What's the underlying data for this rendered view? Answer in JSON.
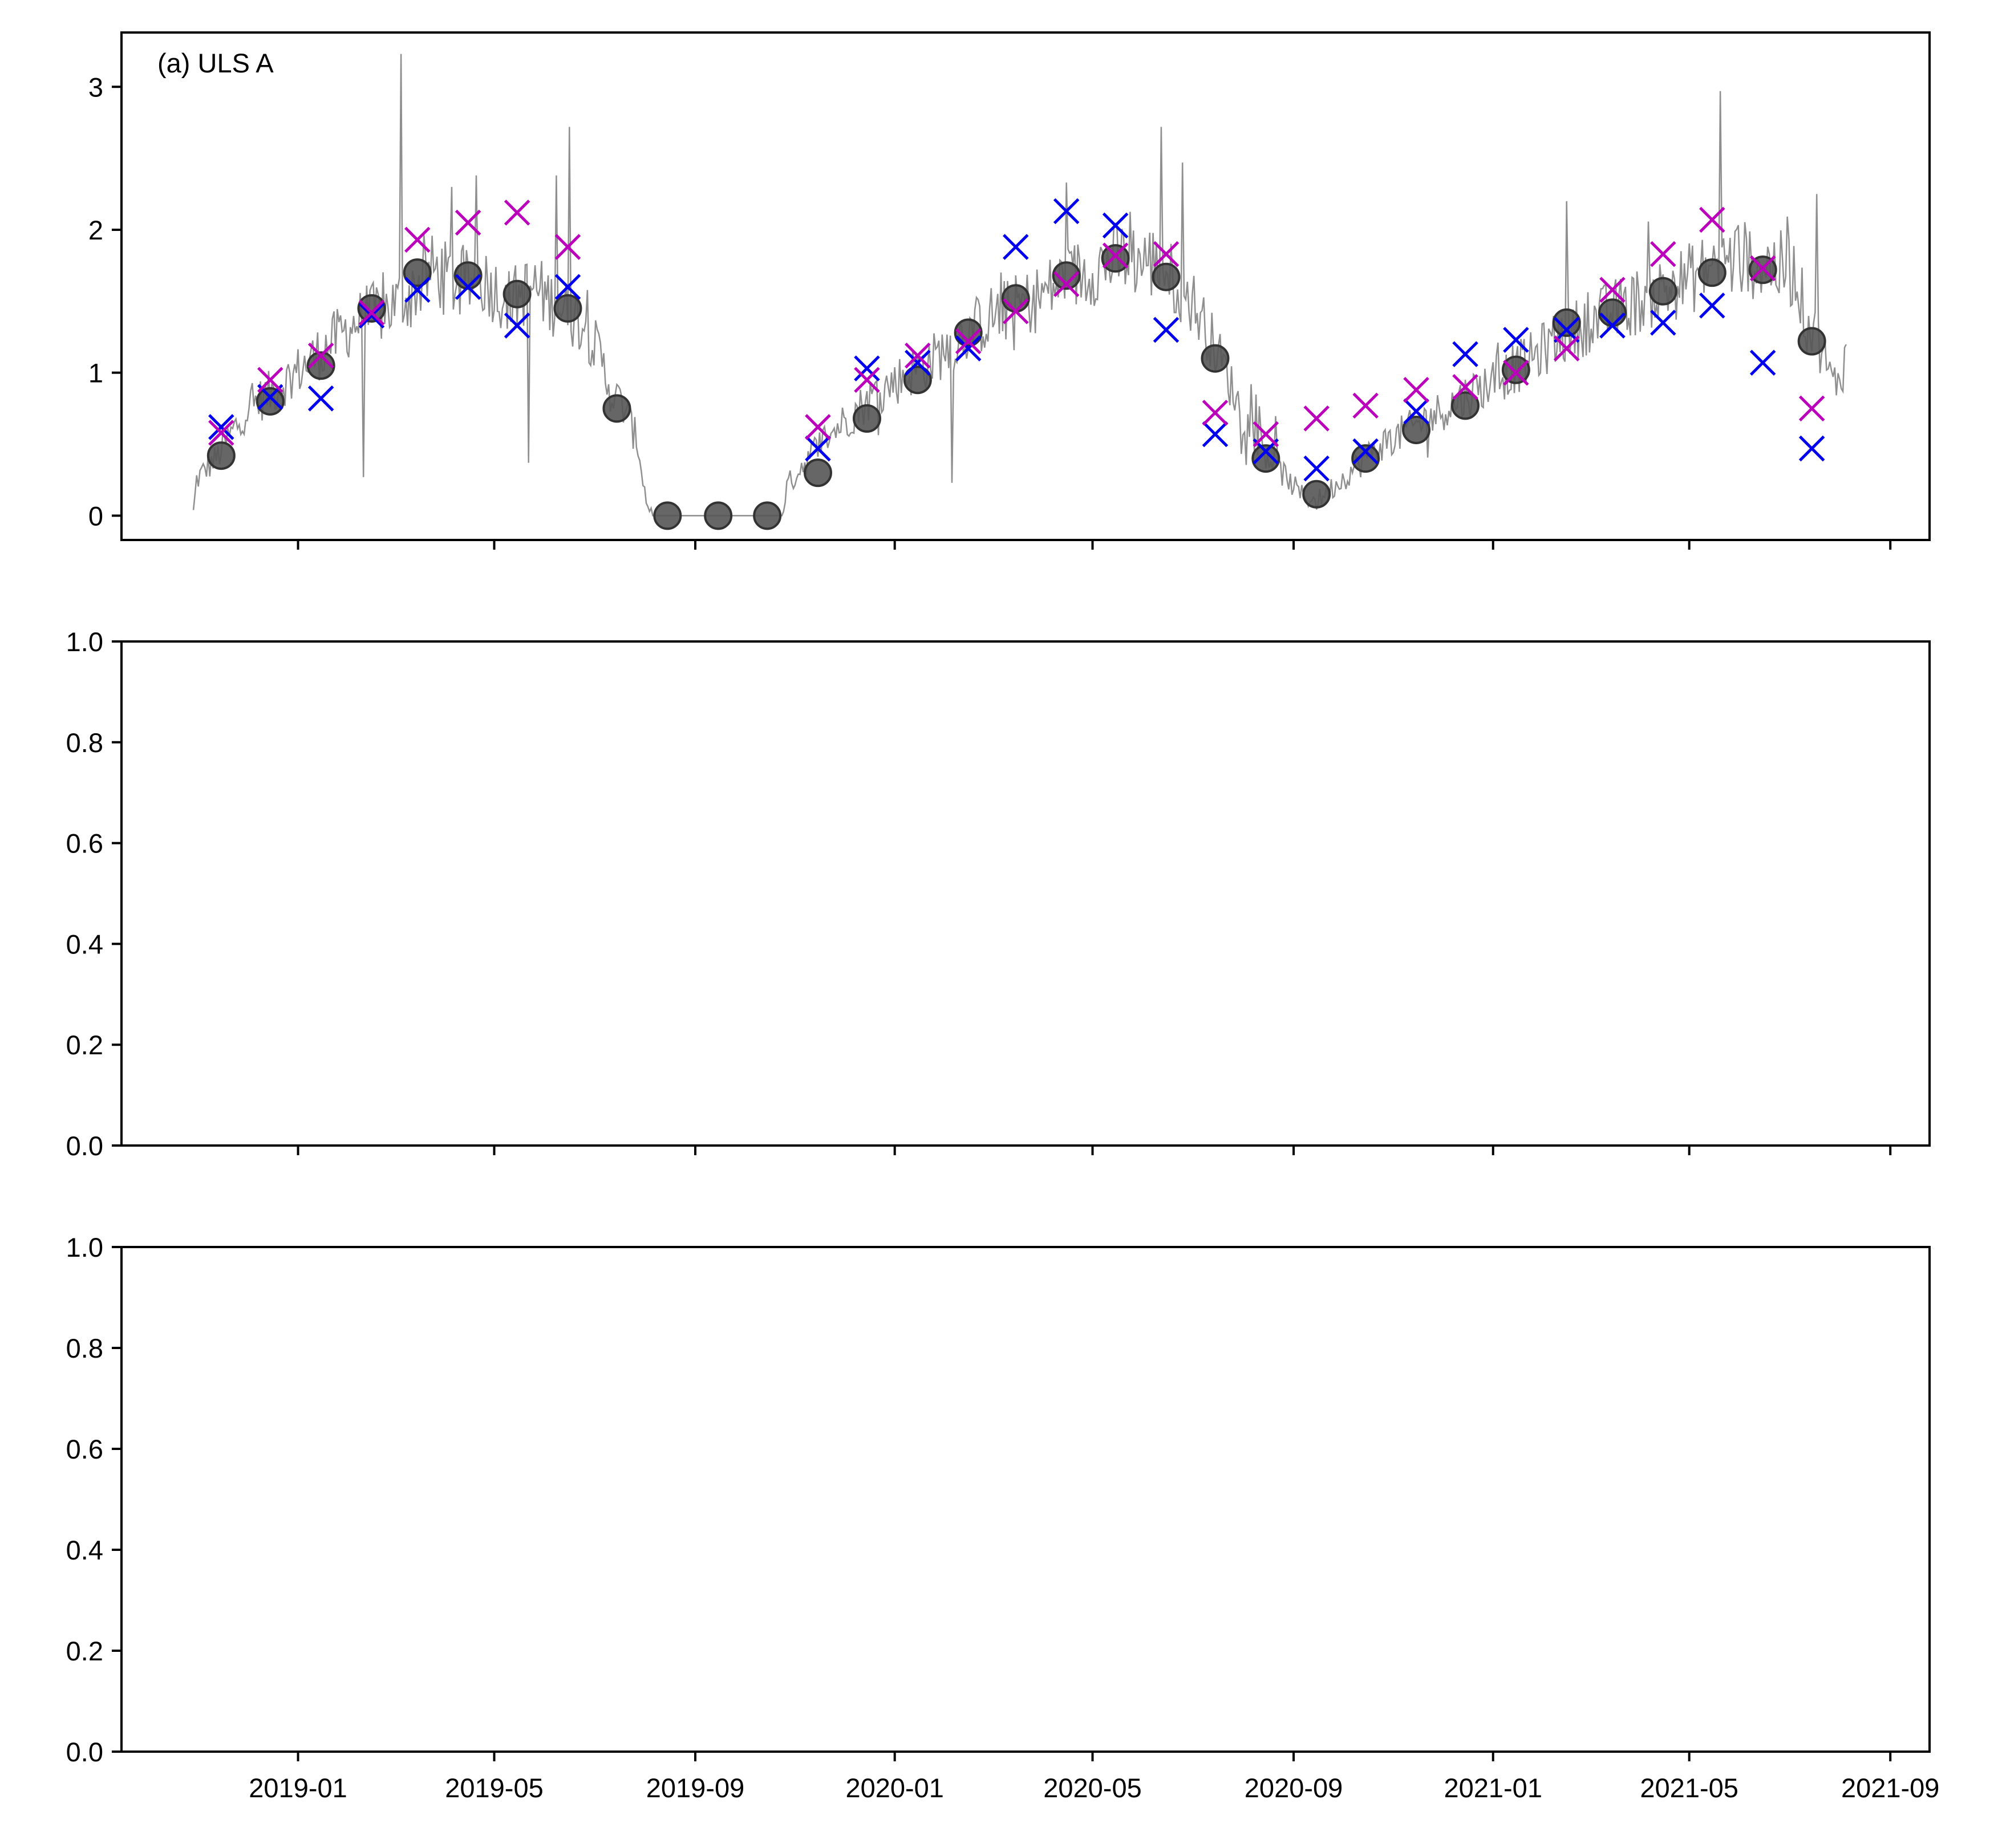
{
  "figure": {
    "x_tick_labels": [
      "2019-01",
      "2019-05",
      "2019-09",
      "2020-01",
      "2020-05",
      "2020-09",
      "2021-01",
      "2021-05",
      "2021-09"
    ],
    "colors": {
      "line": "#8f8f8f",
      "circle_fill": "#555555",
      "circle_edge": "#333333",
      "cross_blue": "#0000ee",
      "cross_magenta": "#bb00bb",
      "axes": "#000000"
    }
  },
  "chart_data": [
    {
      "type": "scatter",
      "panel": "top",
      "annotation": "(a) ULS A",
      "xlabel": "",
      "ylabel": "",
      "x_axis_type": "date",
      "xlim": [
        "2018-09-15",
        "2021-09-25"
      ],
      "ylim": [
        -0.17,
        3.38
      ],
      "y_ticks": [
        0,
        1,
        2,
        3
      ],
      "y_tick_labels": [
        "0",
        "1",
        "2",
        "3"
      ],
      "series": [
        {
          "name": "daily",
          "kind": "line",
          "color": "#8f8f8f",
          "anchors": [
            [
              "2018-10-29",
              0.02
            ],
            [
              "2018-10-31",
              0.25
            ],
            [
              "2018-11-05",
              0.32
            ],
            [
              "2018-11-12",
              0.4
            ],
            [
              "2018-11-20",
              0.55
            ],
            [
              "2018-12-01",
              0.75
            ],
            [
              "2018-12-10",
              0.82
            ],
            [
              "2018-12-20",
              0.9
            ],
            [
              "2019-01-05",
              1.05
            ],
            [
              "2019-01-20",
              1.2
            ],
            [
              "2019-02-05",
              1.35
            ],
            [
              "2019-02-25",
              1.45
            ],
            [
              "2019-03-10",
              1.55
            ],
            [
              "2019-03-25",
              1.72
            ],
            [
              "2019-04-10",
              1.6
            ],
            [
              "2019-04-25",
              1.65
            ],
            [
              "2019-05-10",
              1.5
            ],
            [
              "2019-05-25",
              1.6
            ],
            [
              "2019-06-10",
              1.45
            ],
            [
              "2019-06-25",
              1.35
            ],
            [
              "2019-07-05",
              1.1
            ],
            [
              "2019-07-12",
              0.85
            ],
            [
              "2019-07-20",
              0.75
            ],
            [
              "2019-07-28",
              0.5
            ],
            [
              "2019-08-02",
              0.1
            ],
            [
              "2019-08-06",
              0.0
            ],
            [
              "2019-10-24",
              0.0
            ],
            [
              "2019-10-27",
              0.2
            ],
            [
              "2019-11-05",
              0.35
            ],
            [
              "2019-11-20",
              0.55
            ],
            [
              "2019-12-05",
              0.7
            ],
            [
              "2019-12-20",
              0.85
            ],
            [
              "2020-01-10",
              1.0
            ],
            [
              "2020-01-25",
              1.1
            ],
            [
              "2020-02-10",
              1.25
            ],
            [
              "2020-03-01",
              1.4
            ],
            [
              "2020-03-25",
              1.5
            ],
            [
              "2020-04-15",
              1.65
            ],
            [
              "2020-05-05",
              1.75
            ],
            [
              "2020-05-20",
              1.8
            ],
            [
              "2020-06-05",
              1.78
            ],
            [
              "2020-06-20",
              1.65
            ],
            [
              "2020-07-01",
              1.5
            ],
            [
              "2020-07-10",
              1.3
            ],
            [
              "2020-07-20",
              1.05
            ],
            [
              "2020-08-01",
              0.7
            ],
            [
              "2020-08-15",
              0.45
            ],
            [
              "2020-08-25",
              0.3
            ],
            [
              "2020-09-05",
              0.15
            ],
            [
              "2020-09-15",
              0.1
            ],
            [
              "2020-09-25",
              0.2
            ],
            [
              "2020-10-10",
              0.35
            ],
            [
              "2020-10-25",
              0.5
            ],
            [
              "2020-11-10",
              0.6
            ],
            [
              "2020-11-25",
              0.7
            ],
            [
              "2020-12-10",
              0.8
            ],
            [
              "2020-12-25",
              0.9
            ],
            [
              "2021-01-10",
              1.0
            ],
            [
              "2021-01-25",
              1.1
            ],
            [
              "2021-02-10",
              1.25
            ],
            [
              "2021-03-01",
              1.35
            ],
            [
              "2021-03-20",
              1.45
            ],
            [
              "2021-04-10",
              1.55
            ],
            [
              "2021-04-30",
              1.65
            ],
            [
              "2021-05-15",
              1.75
            ],
            [
              "2021-06-01",
              1.8
            ],
            [
              "2021-06-20",
              1.75
            ],
            [
              "2021-07-05",
              1.7
            ],
            [
              "2021-07-12",
              1.35
            ],
            [
              "2021-07-20",
              1.2
            ],
            [
              "2021-07-28",
              0.9
            ],
            [
              "2021-08-05",
              1.1
            ]
          ],
          "spikes": [
            [
              "2019-02-10",
              0.27
            ],
            [
              "2019-03-05",
              3.23
            ],
            [
              "2019-04-05",
              2.3
            ],
            [
              "2019-04-20",
              2.38
            ],
            [
              "2019-05-22",
              0.37
            ],
            [
              "2019-06-08",
              2.38
            ],
            [
              "2019-06-16",
              2.72
            ],
            [
              "2020-02-05",
              0.23
            ],
            [
              "2020-04-15",
              2.33
            ],
            [
              "2020-06-12",
              2.72
            ],
            [
              "2020-06-25",
              2.47
            ],
            [
              "2021-02-15",
              2.2
            ],
            [
              "2021-05-20",
              2.97
            ],
            [
              "2021-07-18",
              2.25
            ]
          ]
        },
        {
          "name": "monthly",
          "kind": "circle",
          "color": "#555555",
          "points": [
            [
              "2018-11-15",
              0.42
            ],
            [
              "2018-12-15",
              0.8
            ],
            [
              "2019-01-15",
              1.05
            ],
            [
              "2019-02-15",
              1.45
            ],
            [
              "2019-03-15",
              1.7
            ],
            [
              "2019-04-15",
              1.68
            ],
            [
              "2019-05-15",
              1.55
            ],
            [
              "2019-06-15",
              1.45
            ],
            [
              "2019-07-15",
              0.75
            ],
            [
              "2019-08-15",
              0.0
            ],
            [
              "2019-09-15",
              0.0
            ],
            [
              "2019-10-15",
              0.0
            ],
            [
              "2019-11-15",
              0.3
            ],
            [
              "2019-12-15",
              0.68
            ],
            [
              "2020-01-15",
              0.95
            ],
            [
              "2020-02-15",
              1.28
            ],
            [
              "2020-03-15",
              1.52
            ],
            [
              "2020-04-15",
              1.68
            ],
            [
              "2020-05-15",
              1.8
            ],
            [
              "2020-06-15",
              1.67
            ],
            [
              "2020-07-15",
              1.1
            ],
            [
              "2020-08-15",
              0.4
            ],
            [
              "2020-09-15",
              0.15
            ],
            [
              "2020-10-15",
              0.4
            ],
            [
              "2020-11-15",
              0.6
            ],
            [
              "2020-12-15",
              0.77
            ],
            [
              "2021-01-15",
              1.02
            ],
            [
              "2021-02-15",
              1.35
            ],
            [
              "2021-03-15",
              1.42
            ],
            [
              "2021-04-15",
              1.57
            ],
            [
              "2021-05-15",
              1.7
            ],
            [
              "2021-06-15",
              1.72
            ],
            [
              "2021-07-15",
              1.22
            ]
          ]
        },
        {
          "name": "blue cross",
          "kind": "cross",
          "color": "#0000ee",
          "points": [
            [
              "2018-11-15",
              0.62
            ],
            [
              "2018-12-15",
              0.83
            ],
            [
              "2019-01-15",
              0.82
            ],
            [
              "2019-02-15",
              1.4
            ],
            [
              "2019-03-15",
              1.58
            ],
            [
              "2019-04-15",
              1.6
            ],
            [
              "2019-05-15",
              1.33
            ],
            [
              "2019-06-15",
              1.6
            ],
            [
              "2019-11-15",
              0.47
            ],
            [
              "2019-12-15",
              1.03
            ],
            [
              "2020-01-15",
              1.07
            ],
            [
              "2020-02-15",
              1.17
            ],
            [
              "2020-03-15",
              1.88
            ],
            [
              "2020-04-15",
              2.13
            ],
            [
              "2020-05-15",
              2.03
            ],
            [
              "2020-06-15",
              1.3
            ],
            [
              "2020-07-15",
              0.57
            ],
            [
              "2020-08-15",
              0.45
            ],
            [
              "2020-09-15",
              0.33
            ],
            [
              "2020-10-15",
              0.45
            ],
            [
              "2020-11-15",
              0.73
            ],
            [
              "2020-12-15",
              1.13
            ],
            [
              "2021-01-15",
              1.23
            ],
            [
              "2021-02-15",
              1.3
            ],
            [
              "2021-03-15",
              1.33
            ],
            [
              "2021-04-15",
              1.35
            ],
            [
              "2021-05-15",
              1.47
            ],
            [
              "2021-06-15",
              1.07
            ],
            [
              "2021-07-15",
              0.47
            ]
          ]
        },
        {
          "name": "magenta cross",
          "kind": "cross",
          "color": "#bb00bb",
          "points": [
            [
              "2018-11-15",
              0.58
            ],
            [
              "2018-12-15",
              0.95
            ],
            [
              "2019-01-15",
              1.12
            ],
            [
              "2019-02-15",
              1.42
            ],
            [
              "2019-03-15",
              1.93
            ],
            [
              "2019-04-15",
              2.05
            ],
            [
              "2019-05-15",
              2.12
            ],
            [
              "2019-06-15",
              1.88
            ],
            [
              "2019-11-15",
              0.62
            ],
            [
              "2019-12-15",
              0.95
            ],
            [
              "2020-01-15",
              1.12
            ],
            [
              "2020-02-15",
              1.22
            ],
            [
              "2020-03-15",
              1.43
            ],
            [
              "2020-04-15",
              1.62
            ],
            [
              "2020-05-15",
              1.82
            ],
            [
              "2020-06-15",
              1.83
            ],
            [
              "2020-07-15",
              0.72
            ],
            [
              "2020-08-15",
              0.57
            ],
            [
              "2020-09-15",
              0.68
            ],
            [
              "2020-10-15",
              0.77
            ],
            [
              "2020-11-15",
              0.88
            ],
            [
              "2020-12-15",
              0.9
            ],
            [
              "2021-01-15",
              1.0
            ],
            [
              "2021-02-15",
              1.17
            ],
            [
              "2021-03-15",
              1.58
            ],
            [
              "2021-04-15",
              1.83
            ],
            [
              "2021-05-15",
              2.07
            ],
            [
              "2021-06-15",
              1.73
            ],
            [
              "2021-07-15",
              0.75
            ]
          ]
        }
      ]
    },
    {
      "type": "scatter",
      "panel": "middle",
      "xlabel": "",
      "ylabel": "",
      "ylim": [
        0,
        1
      ],
      "y_ticks": [
        0,
        0.2,
        0.4,
        0.6,
        0.8,
        1.0
      ],
      "y_tick_labels": [
        "0.0",
        "0.2",
        "0.4",
        "0.6",
        "0.8",
        "1.0"
      ],
      "series": []
    },
    {
      "type": "scatter",
      "panel": "bottom",
      "xlabel": "",
      "ylabel": "",
      "ylim": [
        0,
        1
      ],
      "y_ticks": [
        0,
        0.2,
        0.4,
        0.6,
        0.8,
        1.0
      ],
      "y_tick_labels": [
        "0.0",
        "0.2",
        "0.4",
        "0.6",
        "0.8",
        "1.0"
      ],
      "series": []
    }
  ]
}
